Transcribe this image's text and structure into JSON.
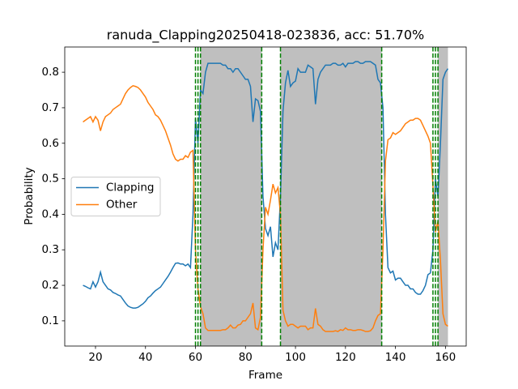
{
  "chart_data": {
    "type": "line",
    "title": "ranuda_Clapping20250418-023836,  acc: 51.70%",
    "xlabel": "Frame",
    "ylabel": "Probability",
    "xlim": [
      7.7,
      168.3
    ],
    "ylim": [
      0.029,
      0.871
    ],
    "xticks": [
      20,
      40,
      60,
      80,
      100,
      120,
      140,
      160
    ],
    "yticks": [
      0.1,
      0.2,
      0.3,
      0.4,
      0.5,
      0.6,
      0.7,
      0.8
    ],
    "legend": "center left",
    "shaded_spans": [
      [
        62,
        86.5
      ],
      [
        94,
        134.5
      ],
      [
        157,
        161
      ]
    ],
    "shade_color": "#bfbfbf",
    "vlines": [
      60,
      61,
      62,
      86.5,
      94,
      134.5,
      155,
      156,
      157
    ],
    "vline_color": "#007f00",
    "x": [
      15,
      16,
      17,
      18,
      19,
      20,
      21,
      22,
      23,
      24,
      25,
      26,
      27,
      28,
      29,
      30,
      31,
      32,
      33,
      34,
      35,
      36,
      37,
      38,
      39,
      40,
      41,
      42,
      43,
      44,
      45,
      46,
      47,
      48,
      49,
      50,
      51,
      52,
      53,
      54,
      55,
      56,
      57,
      58,
      59,
      60,
      61,
      62,
      63,
      64,
      65,
      66,
      67,
      68,
      69,
      70,
      71,
      72,
      73,
      74,
      75,
      76,
      77,
      78,
      79,
      80,
      81,
      82,
      83,
      84,
      85,
      86,
      87,
      88,
      89,
      90,
      91,
      92,
      93,
      94,
      95,
      96,
      97,
      98,
      99,
      100,
      101,
      102,
      103,
      104,
      105,
      106,
      107,
      108,
      109,
      110,
      111,
      112,
      113,
      114,
      115,
      116,
      117,
      118,
      119,
      120,
      121,
      122,
      123,
      124,
      125,
      126,
      127,
      128,
      129,
      130,
      131,
      132,
      133,
      134,
      135,
      136,
      137,
      138,
      139,
      140,
      141,
      142,
      143,
      144,
      145,
      146,
      147,
      148,
      149,
      150,
      151,
      152,
      153,
      154,
      155,
      156,
      157,
      158,
      159,
      160,
      161
    ],
    "series": [
      {
        "name": "Clapping",
        "color": "#1f77b4",
        "values": [
          0.2,
          0.197,
          0.193,
          0.19,
          0.21,
          0.195,
          0.21,
          0.237,
          0.21,
          0.2,
          0.19,
          0.187,
          0.18,
          0.177,
          0.173,
          0.17,
          0.16,
          0.15,
          0.142,
          0.138,
          0.136,
          0.136,
          0.138,
          0.143,
          0.148,
          0.155,
          0.165,
          0.17,
          0.178,
          0.185,
          0.19,
          0.195,
          0.205,
          0.215,
          0.225,
          0.237,
          0.25,
          0.262,
          0.263,
          0.26,
          0.26,
          0.255,
          0.26,
          0.25,
          0.4,
          0.67,
          0.6,
          0.75,
          0.74,
          0.8,
          0.825,
          0.825,
          0.825,
          0.825,
          0.825,
          0.825,
          0.82,
          0.82,
          0.81,
          0.81,
          0.8,
          0.81,
          0.81,
          0.8,
          0.79,
          0.78,
          0.78,
          0.76,
          0.66,
          0.725,
          0.72,
          0.69,
          0.45,
          0.36,
          0.34,
          0.365,
          0.28,
          0.32,
          0.3,
          0.45,
          0.69,
          0.77,
          0.805,
          0.76,
          0.77,
          0.775,
          0.81,
          0.8,
          0.8,
          0.8,
          0.82,
          0.815,
          0.81,
          0.71,
          0.78,
          0.8,
          0.81,
          0.82,
          0.82,
          0.82,
          0.825,
          0.825,
          0.82,
          0.82,
          0.825,
          0.815,
          0.825,
          0.825,
          0.825,
          0.83,
          0.83,
          0.825,
          0.825,
          0.83,
          0.83,
          0.83,
          0.825,
          0.82,
          0.78,
          0.77,
          0.7,
          0.4,
          0.25,
          0.235,
          0.24,
          0.215,
          0.22,
          0.22,
          0.21,
          0.2,
          0.2,
          0.19,
          0.19,
          0.18,
          0.175,
          0.175,
          0.185,
          0.2,
          0.23,
          0.235,
          0.3,
          0.5,
          0.45,
          0.6,
          0.78,
          0.8,
          0.81
        ]
      },
      {
        "name": "Other",
        "color": "#ff7f0e",
        "values": [
          0.66,
          0.665,
          0.67,
          0.675,
          0.66,
          0.675,
          0.665,
          0.635,
          0.66,
          0.675,
          0.68,
          0.685,
          0.695,
          0.7,
          0.705,
          0.71,
          0.725,
          0.74,
          0.75,
          0.757,
          0.762,
          0.76,
          0.757,
          0.75,
          0.74,
          0.73,
          0.715,
          0.705,
          0.695,
          0.68,
          0.675,
          0.665,
          0.65,
          0.635,
          0.615,
          0.595,
          0.57,
          0.555,
          0.55,
          0.555,
          0.555,
          0.565,
          0.56,
          0.575,
          0.58,
          0.3,
          0.19,
          0.14,
          0.12,
          0.08,
          0.073,
          0.073,
          0.073,
          0.073,
          0.073,
          0.073,
          0.075,
          0.075,
          0.08,
          0.088,
          0.08,
          0.08,
          0.088,
          0.09,
          0.1,
          0.1,
          0.11,
          0.12,
          0.15,
          0.08,
          0.075,
          0.11,
          0.3,
          0.42,
          0.4,
          0.44,
          0.485,
          0.46,
          0.475,
          0.4,
          0.13,
          0.1,
          0.085,
          0.09,
          0.09,
          0.085,
          0.08,
          0.085,
          0.085,
          0.085,
          0.075,
          0.08,
          0.08,
          0.135,
          0.09,
          0.085,
          0.075,
          0.07,
          0.07,
          0.07,
          0.07,
          0.072,
          0.07,
          0.075,
          0.073,
          0.08,
          0.075,
          0.075,
          0.073,
          0.073,
          0.075,
          0.075,
          0.073,
          0.07,
          0.07,
          0.072,
          0.08,
          0.1,
          0.115,
          0.12,
          0.3,
          0.55,
          0.61,
          0.615,
          0.63,
          0.625,
          0.63,
          0.635,
          0.645,
          0.655,
          0.66,
          0.665,
          0.665,
          0.67,
          0.67,
          0.665,
          0.65,
          0.635,
          0.62,
          0.6,
          0.48,
          0.35,
          0.38,
          0.27,
          0.12,
          0.09,
          0.085
        ]
      }
    ]
  }
}
